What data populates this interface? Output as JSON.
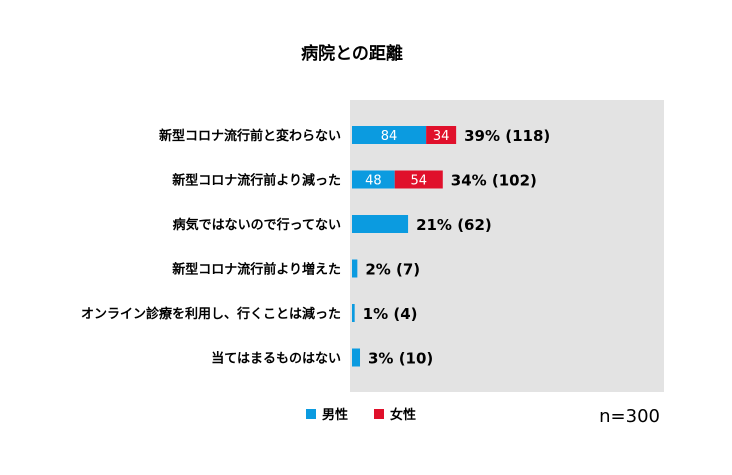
{
  "chart_data": {
    "type": "bar",
    "orientation": "horizontal",
    "stacked": true,
    "title": "病院との距離",
    "categories": [
      "新型コロナ流行前と変わらない",
      "新型コロナ流行前より減った",
      "病気ではないので行ってない",
      "新型コロナ流行前より増えた",
      "オンライン診療を利用し、行くことは減った",
      "当てはまるものはない"
    ],
    "series": [
      {
        "name": "男性",
        "color": "#0b9be0",
        "values": [
          84,
          48,
          null,
          null,
          null,
          null
        ]
      },
      {
        "name": "女性",
        "color": "#e0102b",
        "values": [
          34,
          54,
          null,
          null,
          null,
          null
        ]
      }
    ],
    "totals": {
      "percent": [
        39,
        34,
        21,
        2,
        1,
        3
      ],
      "count": [
        118,
        102,
        62,
        7,
        4,
        10
      ],
      "labels": [
        "39% (118)",
        "34% (102)",
        "21% (62)",
        "2% (7)",
        "1% (4)",
        "3% (10)"
      ]
    },
    "segment_labels": [
      [
        "84",
        "34"
      ],
      [
        "48",
        "54"
      ],
      [],
      [],
      [],
      []
    ],
    "legend_position": "bottom",
    "sample_size": "n=300",
    "plot_background": "#e3e3e3",
    "grid": false
  }
}
